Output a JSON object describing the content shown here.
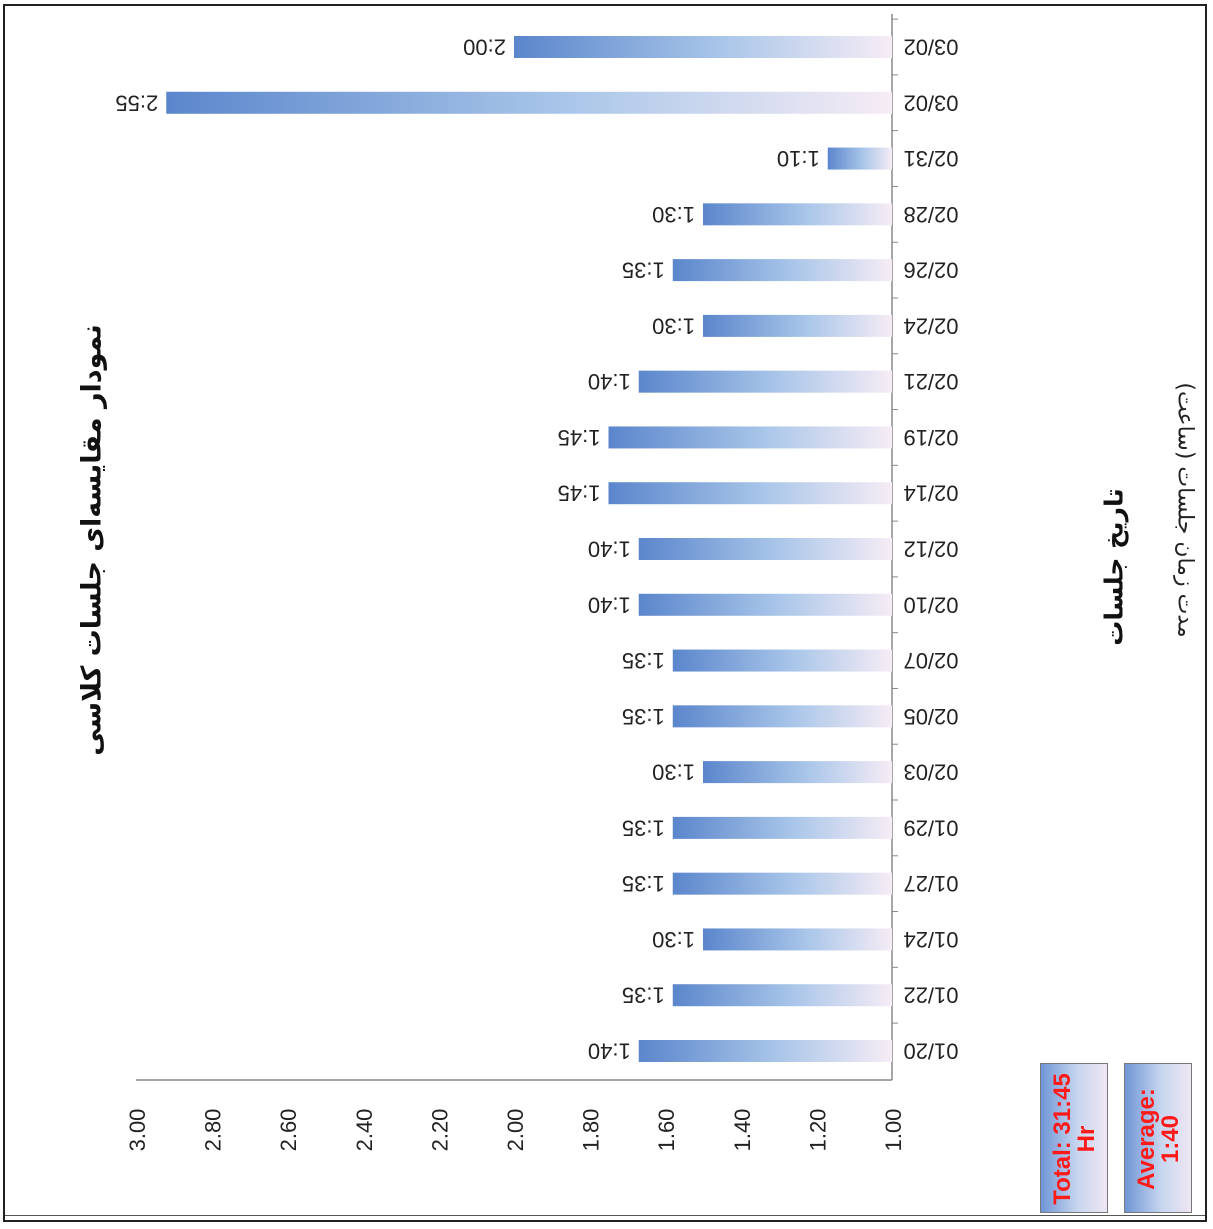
{
  "chart_data": {
    "type": "bar",
    "title": "نمودار مقایسه‌ای جلسات کلاسی",
    "xlabel": "تاریخ جلسات",
    "ylabel": "(ساعت) مدت زمان جلسات",
    "ylim": [
      1.0,
      3.0
    ],
    "yticks": [
      "1.00",
      "1.20",
      "1.40",
      "1.60",
      "1.80",
      "2.00",
      "2.20",
      "2.40",
      "2.60",
      "2.80",
      "3.00"
    ],
    "categories": [
      "01/20",
      "01/22",
      "01/24",
      "01/27",
      "01/29",
      "02/03",
      "02/05",
      "02/07",
      "02/10",
      "02/12",
      "02/14",
      "02/19",
      "02/21",
      "02/24",
      "02/26",
      "02/28",
      "02/31",
      "03/02",
      "03/02"
    ],
    "values": [
      1.67,
      1.58,
      1.5,
      1.58,
      1.58,
      1.5,
      1.58,
      1.58,
      1.67,
      1.67,
      1.75,
      1.75,
      1.67,
      1.5,
      1.58,
      1.5,
      1.17,
      2.92,
      2.0
    ],
    "labels": [
      "1:40",
      "1:35",
      "1:30",
      "1:35",
      "1:35",
      "1:30",
      "1:35",
      "1:35",
      "1:40",
      "1:40",
      "1:45",
      "1:45",
      "1:40",
      "1:30",
      "1:35",
      "1:30",
      "1:10",
      "2:55",
      "2:00"
    ],
    "grid": false
  },
  "stats": {
    "total_line1": "Total: 31:45",
    "total_line2": "Hr",
    "average_line1": "Average:",
    "average_line2": "1:40"
  },
  "colors": {
    "bar_dark": "#5b86cc",
    "bar_light": "#f4eaf4",
    "stat_text": "#ff1a1a"
  }
}
